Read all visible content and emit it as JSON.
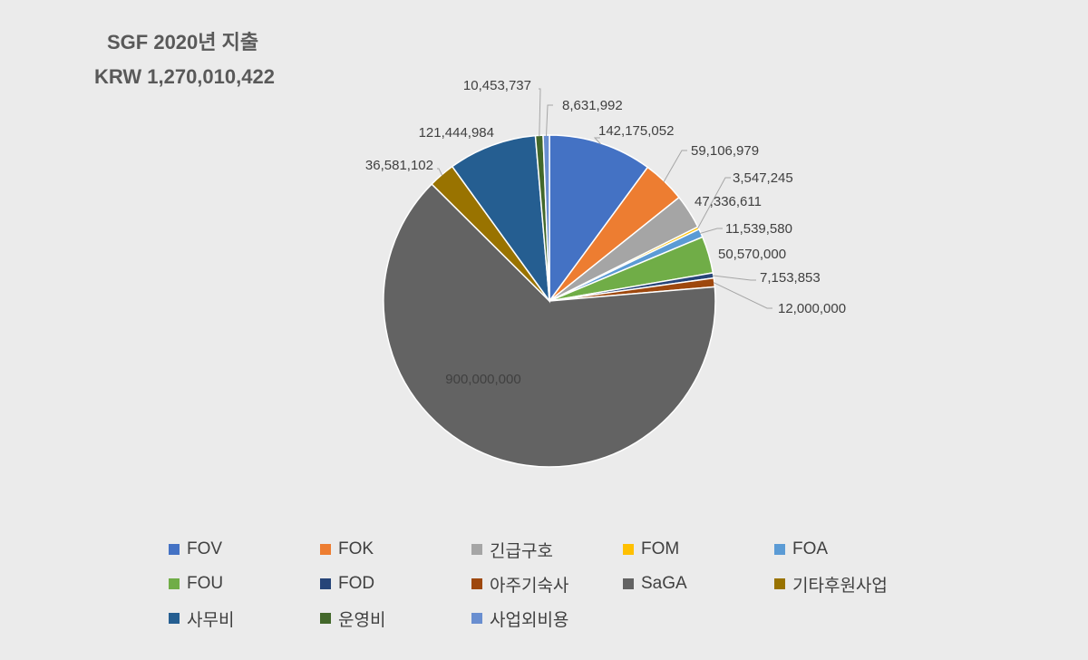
{
  "chart_data": {
    "type": "pie",
    "title": "SGF 2020년 지출",
    "subtitle": "KRW 1,270,010,422",
    "legend_position": "bottom",
    "slices": [
      {
        "name": "FOV",
        "value": 142175052,
        "label": "142,175,052",
        "color": "#4472c4"
      },
      {
        "name": "FOK",
        "value": 59106979,
        "label": "59,106,979",
        "color": "#ed7d31"
      },
      {
        "name": "긴급구호",
        "value": 47336611,
        "label": "47,336,611",
        "color": "#a5a5a5"
      },
      {
        "name": "FOM",
        "value": 3547245,
        "label": "3,547,245",
        "color": "#ffc000"
      },
      {
        "name": "FOA",
        "value": 11539580,
        "label": "11,539,580",
        "color": "#5b9bd5"
      },
      {
        "name": "FOU",
        "value": 50570000,
        "label": "50,570,000",
        "color": "#70ad47"
      },
      {
        "name": "FOD",
        "value": 7153853,
        "label": "7,153,853",
        "color": "#264478"
      },
      {
        "name": "아주기숙사",
        "value": 12000000,
        "label": "12,000,000",
        "color": "#9e480e"
      },
      {
        "name": "SaGA",
        "value": 900000000,
        "label": "900,000,000",
        "color": "#636363"
      },
      {
        "name": "기타후원사업",
        "value": 36581102,
        "label": "36,581,102",
        "color": "#997300"
      },
      {
        "name": "사무비",
        "value": 121444984,
        "label": "121,444,984",
        "color": "#255e91"
      },
      {
        "name": "운영비",
        "value": 10453737,
        "label": "10,453,737",
        "color": "#43682b"
      },
      {
        "name": "사업외비용",
        "value": 8631992,
        "label": "8,631,992",
        "color": "#698ed0"
      }
    ]
  }
}
